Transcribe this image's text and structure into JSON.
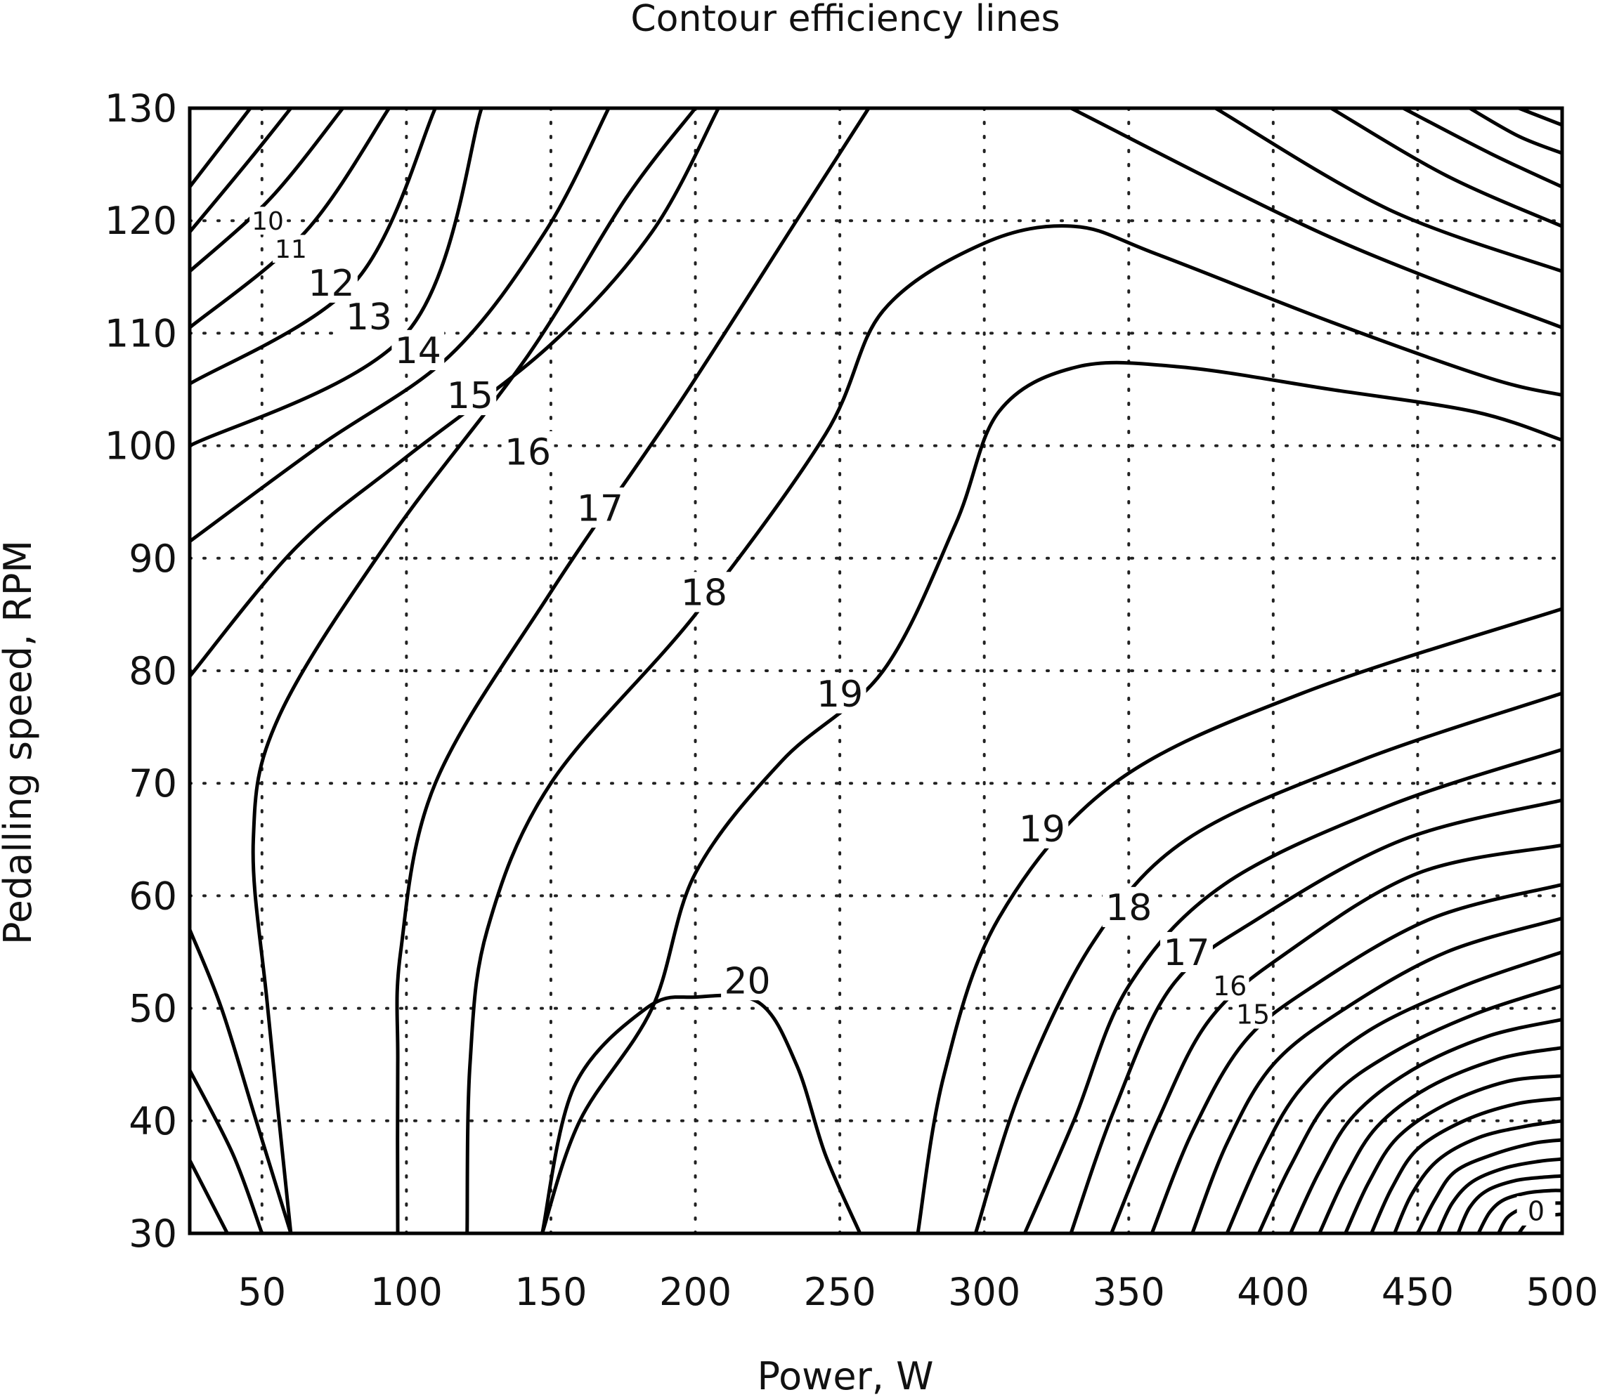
{
  "chart_data": {
    "type": "contour",
    "title": "Contour efficiency lines",
    "xlabel": "Power, W",
    "ylabel": "Pedalling speed, RPM",
    "xlim": [
      25,
      500
    ],
    "ylim": [
      30,
      130
    ],
    "x_ticks": [
      50,
      100,
      150,
      200,
      250,
      300,
      350,
      400,
      450,
      500
    ],
    "y_ticks": [
      30,
      40,
      50,
      60,
      70,
      80,
      90,
      100,
      110,
      120,
      130
    ],
    "grid": true,
    "contour_lines": [
      {
        "points": [
          [
            25,
            123
          ],
          [
            46,
            130
          ]
        ]
      },
      {
        "points": [
          [
            25,
            119
          ],
          [
            46,
            125
          ],
          [
            60,
            130
          ]
        ]
      },
      {
        "points": [
          [
            25,
            115.5
          ],
          [
            53,
            122
          ],
          [
            78,
            130
          ]
        ]
      },
      {
        "points": [
          [
            25,
            110
          ],
          [
            65,
            118
          ],
          [
            94,
            130
          ]
        ]
      },
      {
        "points": [
          [
            25,
            105.5
          ],
          [
            83,
            113
          ],
          [
            110,
            130
          ]
        ]
      },
      {
        "points": [
          [
            25,
            100
          ],
          [
            100,
            109
          ],
          [
            125,
            130
          ]
        ]
      },
      {
        "points": [
          [
            25,
            91.5
          ],
          [
            80,
            102
          ],
          [
            120,
            105
          ],
          [
            148,
            118
          ],
          [
            170,
            130
          ]
        ]
      },
      {
        "points": [
          [
            25,
            79
          ],
          [
            90,
            97
          ],
          [
            140,
            100
          ],
          [
            175,
            114
          ],
          [
            208,
            130
          ]
        ]
      },
      {
        "points": [
          [
            25,
            57
          ],
          [
            48,
            53
          ],
          [
            60,
            40
          ],
          [
            74,
            30
          ]
        ],
        "label": "",
        "label_note": "left low"
      },
      {
        "points": [
          [
            25,
            44.5
          ],
          [
            40,
            40
          ],
          [
            60,
            33
          ],
          [
            62,
            30
          ]
        ]
      },
      {
        "points": [
          [
            25,
            36.5
          ],
          [
            38,
            33
          ],
          [
            46,
            30
          ]
        ]
      }
    ],
    "labeled_contours": [
      {
        "level": 10,
        "label_at": [
          52,
          120
        ]
      },
      {
        "level": 11,
        "label_at": [
          60,
          117.5
        ]
      },
      {
        "level": 12,
        "label_at": [
          74,
          114.5
        ]
      },
      {
        "level": 13,
        "label_at": [
          87,
          111.5
        ]
      },
      {
        "level": 14,
        "label_at": [
          104,
          108.5
        ]
      },
      {
        "level": 15,
        "label_at": [
          122,
          104.5
        ]
      },
      {
        "level": 16,
        "label_at": [
          142,
          99.5
        ]
      },
      {
        "level": 17,
        "label_at": [
          167,
          94.5
        ]
      },
      {
        "level": 18,
        "label_at": [
          203,
          87
        ]
      },
      {
        "level": 19,
        "label_at": [
          250,
          78
        ]
      },
      {
        "level": 20,
        "label_at": [
          218,
          52.5
        ]
      },
      {
        "level": 19,
        "label_at": [
          320,
          66
        ]
      },
      {
        "level": 18,
        "label_at": [
          350,
          59
        ]
      },
      {
        "level": 17,
        "label_at": [
          370,
          55
        ]
      },
      {
        "level": 16,
        "label_at": [
          385,
          52
        ]
      },
      {
        "level": 15,
        "label_at": [
          393,
          49.5
        ]
      },
      {
        "level": 0,
        "label_at": [
          491,
          32
        ]
      }
    ]
  }
}
